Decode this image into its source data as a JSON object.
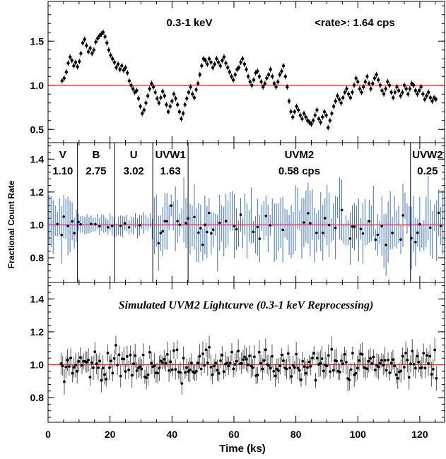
{
  "chart_data": [
    {
      "type": "scatter",
      "panel": "top",
      "title": "0.3-1 keV",
      "rate_label": "<rate>: 1.64 cps",
      "ylim": [
        0.35,
        1.95
      ],
      "yticks": [
        "0.5",
        "1.0",
        "1.5"
      ],
      "reference_line": 1.0,
      "points": [
        [
          4.5,
          1.05
        ],
        [
          5.2,
          1.08
        ],
        [
          5.9,
          1.15
        ],
        [
          6.5,
          1.25
        ],
        [
          7.1,
          1.32
        ],
        [
          7.7,
          1.28
        ],
        [
          8.3,
          1.22
        ],
        [
          8.9,
          1.26
        ],
        [
          9.5,
          1.21
        ],
        [
          10.1,
          1.27
        ],
        [
          10.6,
          1.36
        ],
        [
          11.2,
          1.48
        ],
        [
          11.8,
          1.52
        ],
        [
          12.4,
          1.45
        ],
        [
          13.0,
          1.38
        ],
        [
          13.6,
          1.42
        ],
        [
          14.2,
          1.36
        ],
        [
          14.8,
          1.4
        ],
        [
          15.4,
          1.49
        ],
        [
          16.0,
          1.53
        ],
        [
          16.6,
          1.56
        ],
        [
          17.2,
          1.58
        ],
        [
          17.8,
          1.6
        ],
        [
          18.4,
          1.55
        ],
        [
          19.0,
          1.48
        ],
        [
          19.6,
          1.4
        ],
        [
          20.2,
          1.34
        ],
        [
          20.8,
          1.3
        ],
        [
          21.4,
          1.26
        ],
        [
          22.0,
          1.2
        ],
        [
          22.6,
          1.24
        ],
        [
          23.2,
          1.18
        ],
        [
          23.8,
          1.22
        ],
        [
          24.4,
          1.17
        ],
        [
          25.0,
          1.2
        ],
        [
          25.6,
          1.14
        ],
        [
          26.2,
          1.05
        ],
        [
          26.8,
          1.0
        ],
        [
          27.4,
          0.96
        ],
        [
          28.0,
          0.92
        ],
        [
          28.6,
          0.94
        ],
        [
          29.2,
          0.85
        ],
        [
          29.8,
          0.76
        ],
        [
          30.4,
          0.68
        ],
        [
          31.0,
          0.72
        ],
        [
          31.6,
          0.8
        ],
        [
          32.2,
          0.88
        ],
        [
          32.8,
          0.96
        ],
        [
          33.4,
          1.02
        ],
        [
          34.0,
          0.98
        ],
        [
          34.6,
          0.92
        ],
        [
          35.2,
          0.85
        ],
        [
          35.8,
          0.8
        ],
        [
          36.4,
          0.86
        ],
        [
          37.0,
          0.93
        ],
        [
          37.6,
          0.88
        ],
        [
          38.2,
          0.78
        ],
        [
          38.8,
          0.7
        ],
        [
          39.4,
          0.76
        ],
        [
          40.0,
          0.82
        ],
        [
          40.6,
          0.9
        ],
        [
          41.2,
          0.85
        ],
        [
          41.8,
          0.78
        ],
        [
          42.4,
          0.7
        ],
        [
          43.0,
          0.62
        ],
        [
          43.6,
          0.68
        ],
        [
          44.2,
          0.78
        ],
        [
          44.8,
          0.85
        ],
        [
          45.4,
          0.92
        ],
        [
          46.0,
          0.98
        ],
        [
          46.6,
          0.9
        ],
        [
          47.2,
          0.86
        ],
        [
          47.8,
          0.95
        ],
        [
          48.4,
          1.02
        ],
        [
          49.0,
          1.12
        ],
        [
          49.6,
          1.22
        ],
        [
          50.2,
          1.3
        ],
        [
          50.8,
          1.28
        ],
        [
          51.4,
          1.24
        ],
        [
          52.0,
          1.3
        ],
        [
          52.6,
          1.26
        ],
        [
          53.2,
          1.2
        ],
        [
          53.8,
          1.24
        ],
        [
          54.4,
          1.3
        ],
        [
          55.0,
          1.26
        ],
        [
          55.6,
          1.22
        ],
        [
          56.2,
          1.28
        ],
        [
          56.8,
          1.32
        ],
        [
          57.4,
          1.25
        ],
        [
          58.0,
          1.2
        ],
        [
          58.6,
          1.15
        ],
        [
          59.2,
          1.1
        ],
        [
          59.8,
          1.06
        ],
        [
          60.4,
          1.12
        ],
        [
          61.0,
          1.18
        ],
        [
          61.6,
          1.2
        ],
        [
          62.2,
          1.26
        ],
        [
          62.8,
          1.3
        ],
        [
          63.4,
          1.24
        ],
        [
          64.0,
          1.18
        ],
        [
          64.6,
          1.1
        ],
        [
          65.2,
          1.04
        ],
        [
          65.8,
          1.0
        ],
        [
          66.4,
          1.06
        ],
        [
          67.0,
          1.14
        ],
        [
          67.6,
          1.16
        ],
        [
          68.2,
          1.1
        ],
        [
          68.8,
          1.04
        ],
        [
          69.4,
          0.98
        ],
        [
          70.0,
          1.02
        ],
        [
          70.6,
          1.08
        ],
        [
          71.2,
          1.12
        ],
        [
          71.8,
          1.18
        ],
        [
          72.4,
          1.1
        ],
        [
          73.0,
          1.02
        ],
        [
          73.6,
          0.98
        ],
        [
          74.2,
          1.04
        ],
        [
          74.8,
          1.12
        ],
        [
          75.4,
          1.16
        ],
        [
          76.0,
          1.22
        ],
        [
          76.6,
          1.1
        ],
        [
          77.2,
          0.98
        ],
        [
          77.8,
          0.82
        ],
        [
          78.4,
          0.7
        ],
        [
          79.0,
          0.64
        ],
        [
          79.6,
          0.7
        ],
        [
          80.2,
          0.76
        ],
        [
          80.8,
          0.72
        ],
        [
          81.4,
          0.66
        ],
        [
          82.0,
          0.62
        ],
        [
          82.6,
          0.68
        ],
        [
          83.2,
          0.64
        ],
        [
          83.8,
          0.6
        ],
        [
          84.4,
          0.58
        ],
        [
          85.0,
          0.56
        ],
        [
          85.6,
          0.6
        ],
        [
          86.2,
          0.66
        ],
        [
          86.8,
          0.72
        ],
        [
          87.4,
          0.62
        ],
        [
          88.0,
          0.58
        ],
        [
          88.6,
          0.64
        ],
        [
          89.2,
          0.7
        ],
        [
          89.8,
          0.66
        ],
        [
          90.4,
          0.52
        ],
        [
          91.0,
          0.6
        ],
        [
          91.6,
          0.68
        ],
        [
          92.2,
          0.76
        ],
        [
          92.8,
          0.82
        ],
        [
          93.4,
          0.88
        ],
        [
          94.0,
          0.84
        ],
        [
          94.6,
          0.8
        ],
        [
          95.2,
          0.86
        ],
        [
          95.8,
          0.92
        ],
        [
          96.4,
          0.96
        ],
        [
          97.0,
          0.9
        ],
        [
          97.6,
          0.86
        ],
        [
          98.2,
          0.92
        ],
        [
          98.8,
          1.0
        ],
        [
          99.4,
          1.08
        ],
        [
          100.0,
          1.04
        ],
        [
          100.6,
          0.96
        ],
        [
          101.2,
          0.92
        ],
        [
          101.8,
          0.98
        ],
        [
          102.4,
          1.04
        ],
        [
          103.0,
          1.1
        ],
        [
          103.6,
          1.02
        ],
        [
          104.2,
          0.96
        ],
        [
          104.8,
          1.02
        ],
        [
          105.4,
          1.08
        ],
        [
          106.0,
          1.12
        ],
        [
          106.6,
          1.06
        ],
        [
          107.2,
          1.0
        ],
        [
          107.8,
          0.94
        ],
        [
          108.4,
          0.9
        ],
        [
          109.0,
          0.96
        ],
        [
          109.6,
          1.04
        ],
        [
          110.2,
          1.0
        ],
        [
          110.8,
          0.92
        ],
        [
          111.4,
          0.86
        ],
        [
          112.0,
          0.92
        ],
        [
          112.6,
          0.98
        ],
        [
          113.2,
          0.94
        ],
        [
          113.8,
          0.88
        ],
        [
          114.4,
          0.92
        ],
        [
          115.0,
          1.0
        ],
        [
          115.6,
          0.96
        ],
        [
          116.2,
          0.9
        ],
        [
          116.8,
          0.96
        ],
        [
          117.4,
          1.02
        ],
        [
          118.0,
          1.0
        ],
        [
          118.6,
          0.94
        ],
        [
          119.2,
          0.9
        ],
        [
          119.8,
          0.94
        ],
        [
          120.4,
          0.98
        ],
        [
          121.0,
          0.9
        ],
        [
          121.6,
          0.84
        ],
        [
          122.2,
          0.88
        ],
        [
          122.8,
          0.92
        ],
        [
          123.4,
          0.86
        ],
        [
          124.0,
          0.82
        ],
        [
          124.6,
          0.86
        ],
        [
          125.2,
          0.84
        ]
      ]
    },
    {
      "type": "scatter",
      "panel": "middle",
      "ylim": [
        0.65,
        1.5
      ],
      "yticks": [
        "0.8",
        "1.0",
        "1.2",
        "1.4"
      ],
      "reference_line": 1.0,
      "series_color": "#3a6fe0",
      "bands": [
        {
          "name": "V",
          "rate": "1.10",
          "x_start": 0,
          "x_end": 9.5
        },
        {
          "name": "B",
          "rate": "2.75",
          "x_start": 9.5,
          "x_end": 21.5
        },
        {
          "name": "U",
          "rate": "3.02",
          "x_start": 21.5,
          "x_end": 33.8
        },
        {
          "name": "UVW1",
          "rate": "1.63",
          "x_start": 33.8,
          "x_end": 45.2
        },
        {
          "name": "UVM2",
          "rate": "0.58 cps",
          "x_start": 45.2,
          "x_end": 117.0
        },
        {
          "name": "UVW2",
          "rate": "0.25",
          "x_start": 117.0,
          "x_end": 128
        }
      ],
      "band_dividers": [
        9.5,
        21.5,
        33.8,
        45.2,
        117.0
      ]
    },
    {
      "type": "scatter",
      "panel": "bottom",
      "title": "Simulated UVM2 Lightcurve (0.3-1 keV Reprocessing)",
      "ylim": [
        0.65,
        1.5
      ],
      "yticks": [
        "0.8",
        "1.0",
        "1.2",
        "1.4"
      ],
      "reference_line": 1.0,
      "xlabel": "Time (ks)",
      "xlim": [
        0,
        128
      ],
      "xticks": [
        "0",
        "20",
        "40",
        "60",
        "80",
        "100",
        "120"
      ]
    }
  ],
  "ylabel": "Fractional Count Rate",
  "colors": {
    "reference_line": "#d42020",
    "middle_errorbars": "#3a6fe0",
    "bottom_errorbars": "#555555"
  }
}
